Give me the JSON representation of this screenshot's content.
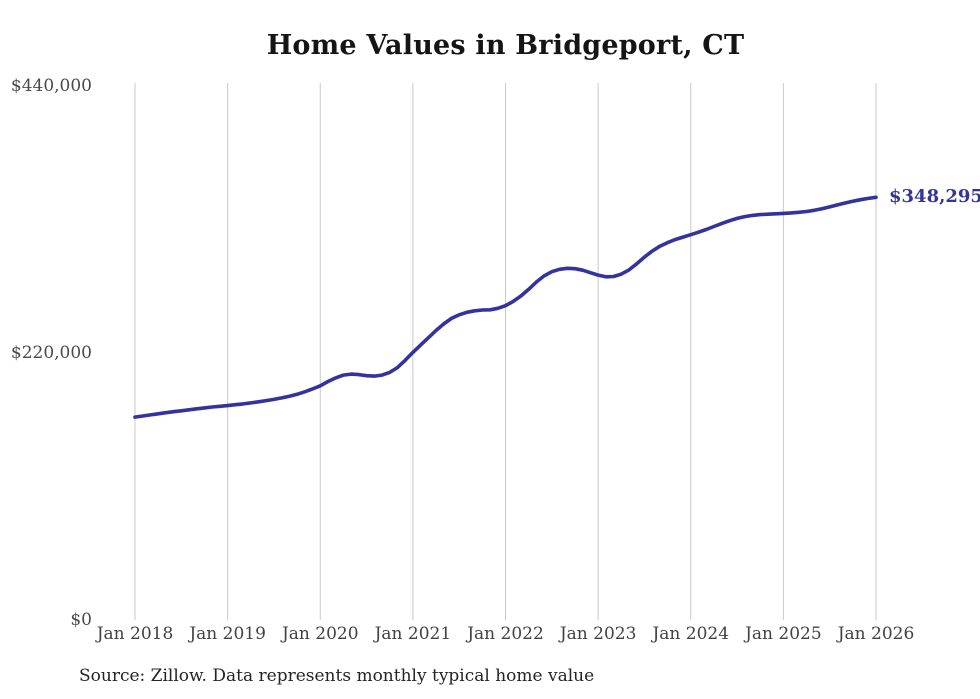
{
  "chart_data": {
    "type": "line",
    "title": "Home Values in Bridgeport, CT",
    "xlabel": "",
    "ylabel": "",
    "ylim": [
      0,
      440000
    ],
    "grid": "vertical-yearly-only",
    "legend": "none",
    "x_tick_labels": [
      "Jan 2018",
      "Jan 2019",
      "Jan 2020",
      "Jan 2021",
      "Jan 2022",
      "Jan 2023",
      "Jan 2024",
      "Jan 2025",
      "Jan 2026"
    ],
    "y_ticks": [
      {
        "label": "$440,000",
        "value": 440000
      },
      {
        "label": "$220,000",
        "value": 220000
      },
      {
        "label": "$0",
        "value": 0
      }
    ],
    "end_label": "$348,295",
    "latest_value": 348295,
    "source": "Source: Zillow. Data represents monthly typical home value",
    "colors": {
      "line": "#3333a0",
      "end_label": "#333399",
      "grid": "#c9c9c9",
      "title": "#151515",
      "axis_text": "#4a4a4a",
      "source_text": "#242424",
      "background": "#ffffff"
    },
    "series": [
      {
        "name": "Typical home value",
        "color": "#3333a0",
        "frequency": "monthly",
        "x_start": "2018-01",
        "x_end": "2026-01",
        "values": [
          167200,
          168100,
          169000,
          169900,
          170800,
          171600,
          172400,
          173200,
          174000,
          174800,
          175500,
          176100,
          176700,
          177400,
          178100,
          178900,
          179800,
          180800,
          181800,
          183000,
          184400,
          186000,
          188000,
          190400,
          193000,
          196500,
          199500,
          201800,
          202600,
          202200,
          201300,
          201000,
          201800,
          204000,
          208000,
          214000,
          220500,
          226500,
          232500,
          238500,
          244000,
          248500,
          251500,
          253500,
          254800,
          255400,
          255600,
          256800,
          259000,
          262500,
          267000,
          272500,
          278500,
          283500,
          287000,
          289000,
          289800,
          289500,
          288200,
          286200,
          284200,
          282800,
          283000,
          285000,
          288500,
          293500,
          299000,
          304000,
          308000,
          311000,
          313500,
          315500,
          317500,
          319500,
          321800,
          324200,
          326600,
          328900,
          330900,
          332400,
          333400,
          334000,
          334400,
          334700,
          335000,
          335400,
          335900,
          336600,
          337600,
          338900,
          340400,
          342000,
          343600,
          345000,
          346300,
          347400,
          348295
        ]
      }
    ]
  }
}
